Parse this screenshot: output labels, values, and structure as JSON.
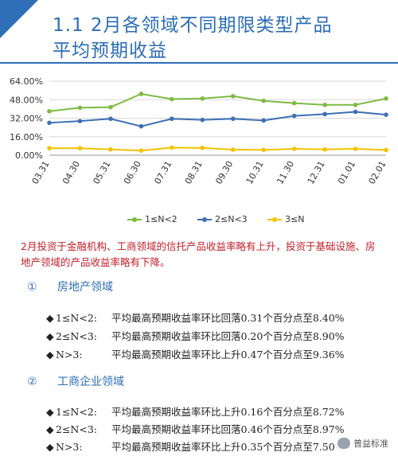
{
  "title": {
    "line1": "1.1  2月各领域不同期限类型产品",
    "line2": "平均预期收益"
  },
  "chart_data": {
    "type": "line",
    "categories": [
      "03.31",
      "04.30",
      "05.31",
      "06.30",
      "07.31",
      "08.31",
      "09.30",
      "10.31",
      "11.30",
      "12.31",
      "01.01",
      "02.01"
    ],
    "ylim": [
      0,
      64
    ],
    "yticks": [
      "0.00%",
      "16.00%",
      "32.00%",
      "48.00%",
      "64.00%"
    ],
    "ytick_values": [
      0,
      16,
      32,
      48,
      64
    ],
    "grid": true,
    "legend_position": "bottom",
    "series": [
      {
        "name": "1≤N<2",
        "color": "#7dbb42",
        "values": [
          38.0,
          41.0,
          41.5,
          53.0,
          48.5,
          49.0,
          51.0,
          47.0,
          45.0,
          43.5,
          43.5,
          49.0
        ]
      },
      {
        "name": "2≤N<3",
        "color": "#3f6fb4",
        "values": [
          28.0,
          29.5,
          31.5,
          25.0,
          31.5,
          30.5,
          31.5,
          30.0,
          34.0,
          35.5,
          37.5,
          35.0
        ]
      },
      {
        "name": "3≤N",
        "color": "#f2c200",
        "values": [
          6.0,
          6.0,
          5.0,
          4.0,
          6.5,
          6.3,
          4.8,
          4.6,
          5.5,
          5.0,
          5.5,
          4.5
        ]
      }
    ]
  },
  "summary": "2月投资于金融机构、工商领域的信托产品收益率略有上升，投资于基础设施、房地产领域的产品收益率略有下降。",
  "sections": [
    {
      "number": "①",
      "title": "房地产领域",
      "items": [
        {
          "bullet": "◆",
          "label": "1≤N<2:",
          "text": "平均最高预期收益率环比回落0.31个百分点至8.40%"
        },
        {
          "bullet": "◆",
          "label": "2≤N<3:",
          "text": "平均最高预期收益率环比回落0.20个百分点至8.90%"
        },
        {
          "bullet": "◆",
          "label": "N>3:",
          "text": "平均最高预期收益率环比上升0.47个百分点至9.36%"
        }
      ]
    },
    {
      "number": "②",
      "title": "工商企业领域",
      "items": [
        {
          "bullet": "◆",
          "label": "1≤N<2:",
          "text": "平均最高预期收益率环比上升0.16个百分点至8.72%"
        },
        {
          "bullet": "◆",
          "label": "2≤N<3:",
          "text": "平均最高预期收益率环比回落0.46个百分点至8.97%"
        },
        {
          "bullet": "◆",
          "label": "N>3:",
          "text": "平均最高预期收益率环比上升0.35个百分点至7.50%"
        }
      ]
    }
  ],
  "watermark": {
    "text": "普益标准",
    "icon": "wechat-icon"
  }
}
